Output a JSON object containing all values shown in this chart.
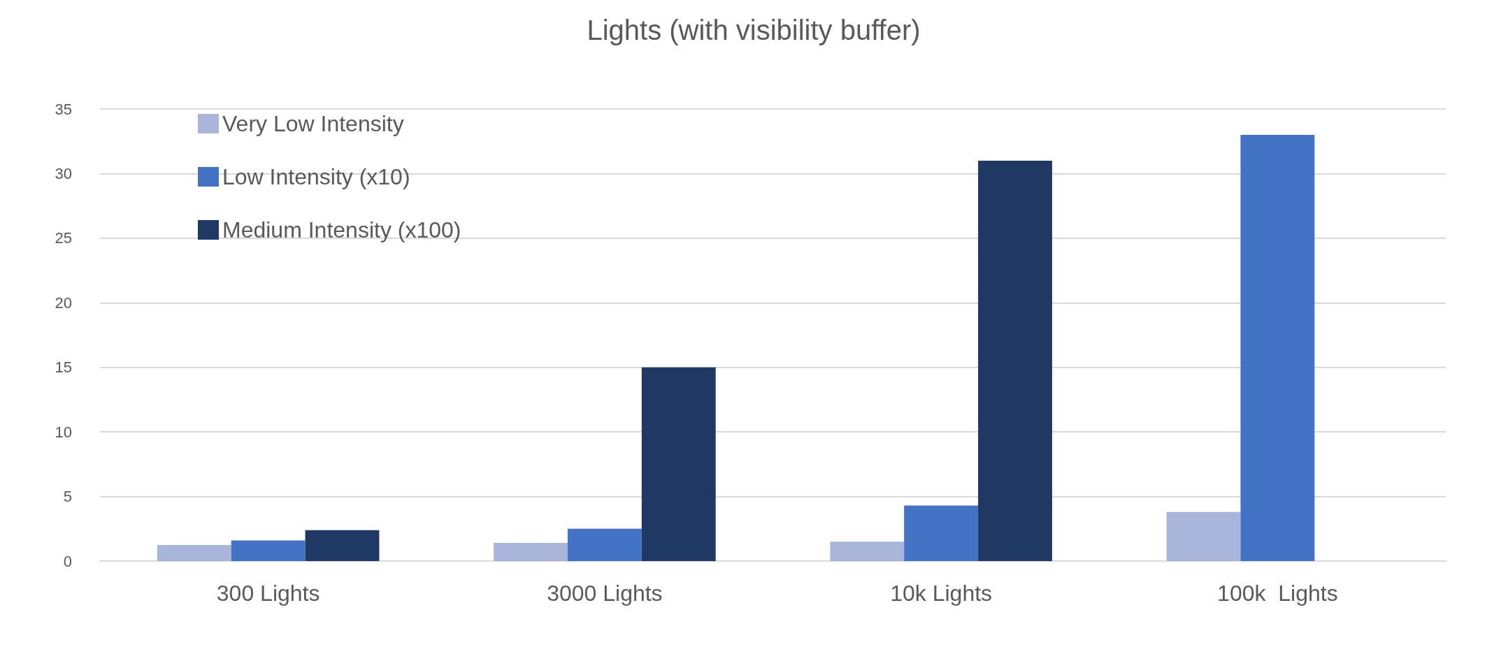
{
  "chart_data": {
    "type": "bar",
    "title": "Lights (with visibility buffer)",
    "categories": [
      "300 Lights",
      "3000 Lights",
      "10k Lights",
      "100k  Lights"
    ],
    "series": [
      {
        "name": "Very Low Intensity",
        "color": "#a9b5da",
        "values": [
          1.25,
          1.4,
          1.5,
          3.8
        ]
      },
      {
        "name": "Low Intensity (x10)",
        "color": "#4472c4",
        "values": [
          1.6,
          2.5,
          4.3,
          33
        ]
      },
      {
        "name": "Medium Intensity (x100)",
        "color": "#203864",
        "values": [
          2.4,
          15,
          31,
          null
        ]
      }
    ],
    "ylim": [
      0,
      35
    ],
    "yticks": [
      0,
      5,
      10,
      15,
      20,
      25,
      30,
      35
    ],
    "grid": "y",
    "legend": "top left"
  }
}
